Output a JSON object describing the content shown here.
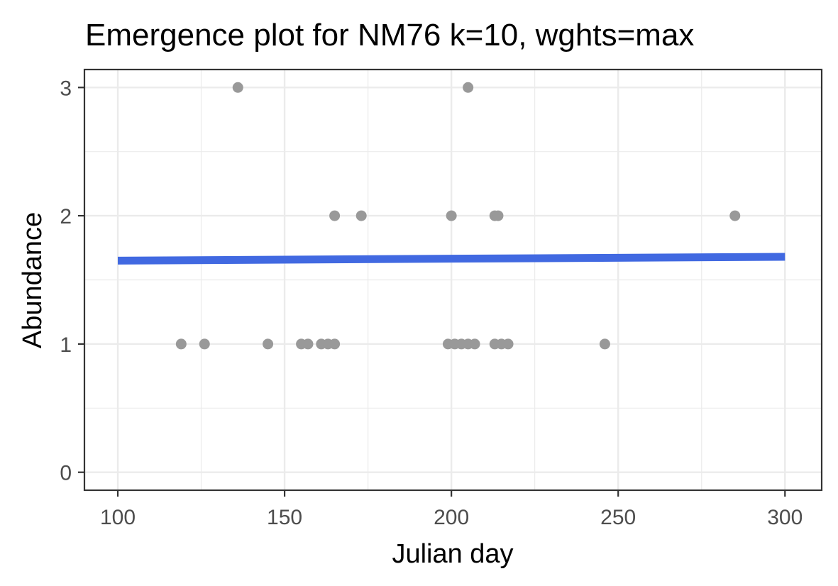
{
  "chart_data": {
    "type": "scatter",
    "title": "Emergence plot for NM76 k=10, wghts=max",
    "xlabel": "Julian day",
    "ylabel": "Abundance",
    "xlim": [
      90,
      311
    ],
    "ylim": [
      -0.14,
      3.14
    ],
    "x_ticks": [
      100,
      150,
      200,
      250,
      300
    ],
    "y_ticks": [
      0,
      1,
      2,
      3
    ],
    "x_minor_ticks": [
      125,
      175,
      225,
      275
    ],
    "y_minor_ticks": [
      0.5,
      1.5,
      2.5
    ],
    "grid": true,
    "point_color": "#999999",
    "line_color": "#4169E1",
    "series": [
      {
        "type": "scatter",
        "points": [
          {
            "x": 119,
            "y": 1
          },
          {
            "x": 126,
            "y": 1
          },
          {
            "x": 136,
            "y": 3
          },
          {
            "x": 145,
            "y": 1
          },
          {
            "x": 155,
            "y": 1
          },
          {
            "x": 157,
            "y": 1
          },
          {
            "x": 161,
            "y": 1
          },
          {
            "x": 163,
            "y": 1
          },
          {
            "x": 165,
            "y": 1
          },
          {
            "x": 165,
            "y": 2
          },
          {
            "x": 173,
            "y": 2
          },
          {
            "x": 199,
            "y": 1
          },
          {
            "x": 200,
            "y": 2
          },
          {
            "x": 201,
            "y": 1
          },
          {
            "x": 203,
            "y": 1
          },
          {
            "x": 205,
            "y": 1
          },
          {
            "x": 205,
            "y": 3
          },
          {
            "x": 207,
            "y": 1
          },
          {
            "x": 213,
            "y": 1
          },
          {
            "x": 213,
            "y": 2
          },
          {
            "x": 214,
            "y": 2
          },
          {
            "x": 215,
            "y": 1
          },
          {
            "x": 217,
            "y": 1
          },
          {
            "x": 246,
            "y": 1
          },
          {
            "x": 285,
            "y": 2
          }
        ]
      },
      {
        "type": "line",
        "points": [
          {
            "x": 100,
            "y": 1.65
          },
          {
            "x": 300,
            "y": 1.68
          }
        ]
      }
    ]
  }
}
